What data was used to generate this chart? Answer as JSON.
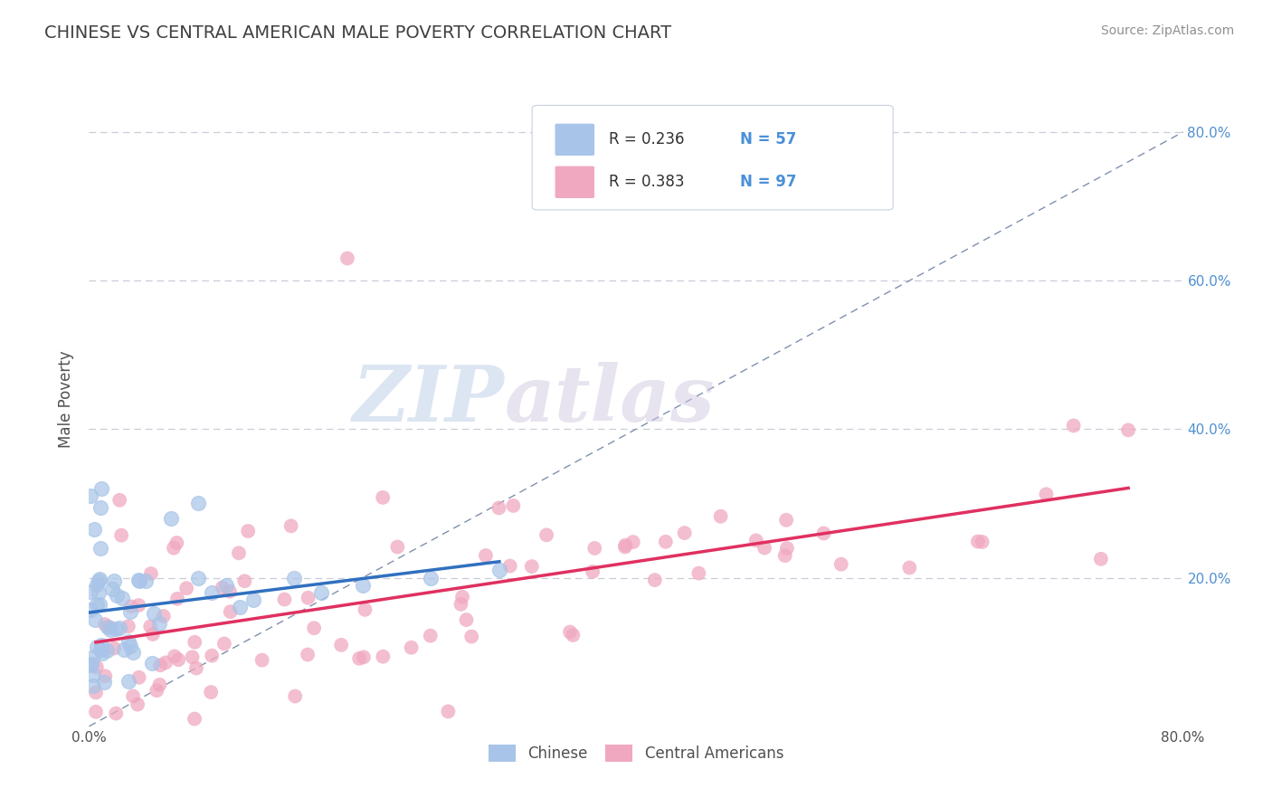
{
  "title": "CHINESE VS CENTRAL AMERICAN MALE POVERTY CORRELATION CHART",
  "source_text": "Source: ZipAtlas.com",
  "ylabel": "Male Poverty",
  "watermark_part1": "ZIP",
  "watermark_part2": "atlas",
  "xlim": [
    0.0,
    0.8
  ],
  "ylim": [
    0.0,
    0.88
  ],
  "chinese_R": 0.236,
  "chinese_N": 57,
  "central_R": 0.383,
  "central_N": 97,
  "chinese_color": "#a8c4e8",
  "central_color": "#f0a8c0",
  "chinese_line_color": "#3070c0",
  "central_line_color": "#e03060",
  "diag_line_color": "#8090b0",
  "background_color": "#ffffff",
  "grid_color": "#c8cdd8",
  "title_color": "#404040",
  "source_color": "#909090",
  "tick_label_color": "#5090d0",
  "legend_r_color": "#303030",
  "legend_n_color": "#4a90d9"
}
